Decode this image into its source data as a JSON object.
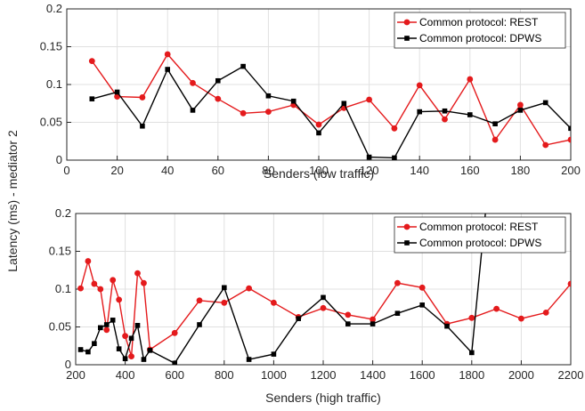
{
  "ylabel": "Latency (ms) - mediator 2",
  "colors": {
    "rest": "#e41a1c",
    "dpws": "#000000",
    "grid": "#e0e0e0",
    "axis": "#262626"
  },
  "chart_data": [
    {
      "type": "line",
      "xlabel": "Senders (low traffic)",
      "xlim": [
        0,
        200
      ],
      "ylim": [
        0,
        0.2
      ],
      "xticks": [
        0,
        20,
        40,
        60,
        80,
        100,
        120,
        140,
        160,
        180,
        200
      ],
      "yticks": [
        0,
        0.05,
        0.1,
        0.15,
        0.2
      ],
      "xtick_labels": [
        "0",
        "20",
        "40",
        "60",
        "80",
        "100",
        "120",
        "140",
        "160",
        "180",
        "200"
      ],
      "ytick_labels": [
        "0",
        "0.05",
        "0.1",
        "0.15",
        "0.2"
      ],
      "grid": true,
      "legend": "top-right",
      "series": [
        {
          "name": "Common protocol: REST",
          "marker": "circle",
          "x": [
            10,
            20,
            30,
            40,
            50,
            60,
            70,
            80,
            90,
            100,
            110,
            120,
            130,
            140,
            150,
            160,
            170,
            180,
            190,
            200
          ],
          "y": [
            0.131,
            0.084,
            0.083,
            0.14,
            0.102,
            0.081,
            0.062,
            0.064,
            0.073,
            0.047,
            0.069,
            0.08,
            0.042,
            0.099,
            0.054,
            0.107,
            0.027,
            0.073,
            0.02,
            0.027
          ]
        },
        {
          "name": "Common protocol: DPWS",
          "marker": "square",
          "x": [
            10,
            20,
            30,
            40,
            50,
            60,
            70,
            80,
            90,
            100,
            110,
            120,
            130,
            140,
            150,
            160,
            170,
            180,
            190,
            200
          ],
          "y": [
            0.081,
            0.09,
            0.045,
            0.12,
            0.066,
            0.105,
            0.124,
            0.085,
            0.078,
            0.036,
            0.075,
            0.004,
            0.003,
            0.064,
            0.065,
            0.06,
            0.048,
            0.066,
            0.076,
            0.042
          ]
        }
      ]
    },
    {
      "type": "line",
      "xlabel": "Senders (high traffic)",
      "xlim": [
        200,
        2200
      ],
      "ylim": [
        0,
        0.2
      ],
      "xticks": [
        200,
        400,
        600,
        800,
        1000,
        1200,
        1400,
        1600,
        1800,
        2000,
        2200
      ],
      "yticks": [
        0,
        0.05,
        0.1,
        0.15,
        0.2
      ],
      "xtick_labels": [
        "200",
        "400",
        "600",
        "800",
        "1000",
        "1200",
        "1400",
        "1600",
        "1800",
        "2000",
        "2200"
      ],
      "ytick_labels": [
        "0",
        "0.05",
        "0.1",
        "0.15",
        "0.2"
      ],
      "grid": true,
      "legend": "top-right",
      "series": [
        {
          "name": "Common protocol: REST",
          "marker": "circle",
          "x": [
            220,
            250,
            275,
            300,
            325,
            350,
            375,
            400,
            425,
            450,
            475,
            500,
            600,
            700,
            800,
            900,
            1000,
            1100,
            1200,
            1300,
            1400,
            1500,
            1600,
            1700,
            1800,
            1900,
            2000,
            2100,
            2200
          ],
          "y": [
            0.101,
            0.137,
            0.107,
            0.1,
            0.046,
            0.112,
            0.086,
            0.038,
            0.011,
            0.121,
            0.108,
            0.02,
            0.042,
            0.085,
            0.082,
            0.101,
            0.082,
            0.063,
            0.075,
            0.066,
            0.06,
            0.108,
            0.102,
            0.054,
            0.062,
            0.074,
            0.061,
            0.069,
            0.107
          ]
        },
        {
          "name": "Common protocol: DPWS",
          "marker": "square",
          "x": [
            220,
            250,
            275,
            300,
            325,
            350,
            375,
            400,
            425,
            450,
            475,
            500,
            600,
            700,
            800,
            900,
            1000,
            1100,
            1200,
            1300,
            1400,
            1500,
            1600,
            1700,
            1800,
            1900
          ],
          "y": [
            0.02,
            0.017,
            0.028,
            0.049,
            0.053,
            0.059,
            0.021,
            0.008,
            0.035,
            0.052,
            0.007,
            0.019,
            0.002,
            0.053,
            0.102,
            0.007,
            0.014,
            0.061,
            0.089,
            0.054,
            0.054,
            0.068,
            0.079,
            0.051,
            0.016,
            0.35
          ]
        }
      ]
    }
  ]
}
